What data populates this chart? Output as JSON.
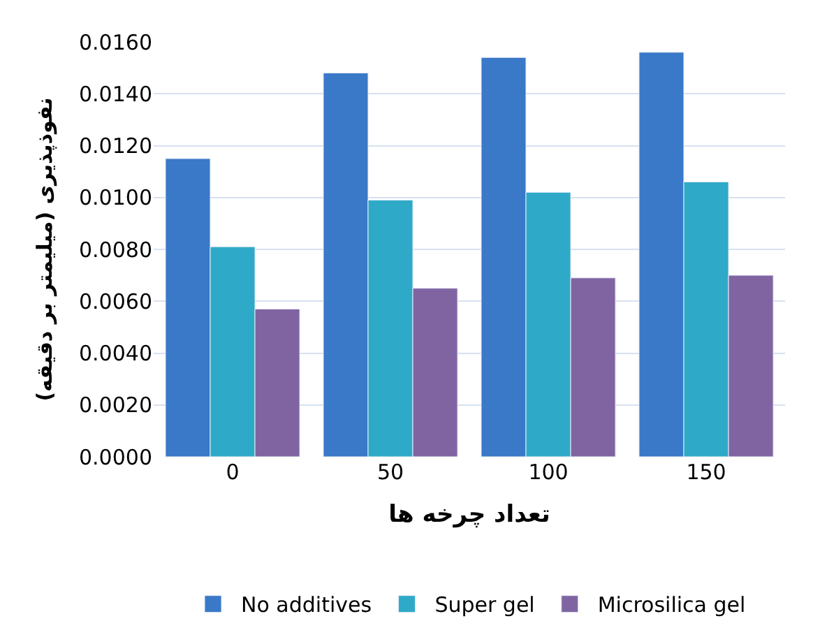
{
  "chart_data": {
    "type": "bar",
    "xlabel": "تعداد چرخه ها",
    "ylabel": "نفوذپذیری (میلیمتر بر دقیقه)",
    "categories": [
      "0",
      "50",
      "100",
      "150"
    ],
    "series": [
      {
        "name": "No additives",
        "color": "#3a78c8",
        "values": [
          0.0115,
          0.0148,
          0.0154,
          0.0156
        ]
      },
      {
        "name": "Super gel",
        "color": "#2eaac8",
        "values": [
          0.0081,
          0.0099,
          0.0102,
          0.0106
        ]
      },
      {
        "name": "Microsilica gel",
        "color": "#8064a2",
        "values": [
          0.0057,
          0.0065,
          0.0069,
          0.007
        ]
      }
    ],
    "ylim": [
      0,
      0.016
    ],
    "yticks": [
      {
        "value": 0,
        "label": "0.0000"
      },
      {
        "value": 0.002,
        "label": "0.0020"
      },
      {
        "value": 0.004,
        "label": "0.0040"
      },
      {
        "value": 0.006,
        "label": "0.0060"
      },
      {
        "value": 0.008,
        "label": "0.0080"
      },
      {
        "value": 0.01,
        "label": "0.0100"
      },
      {
        "value": 0.012,
        "label": "0.0120"
      },
      {
        "value": 0.014,
        "label": "0.0140"
      },
      {
        "value": 0.016,
        "label": "0.0160"
      }
    ],
    "grid": "y",
    "legend": "bottom"
  }
}
